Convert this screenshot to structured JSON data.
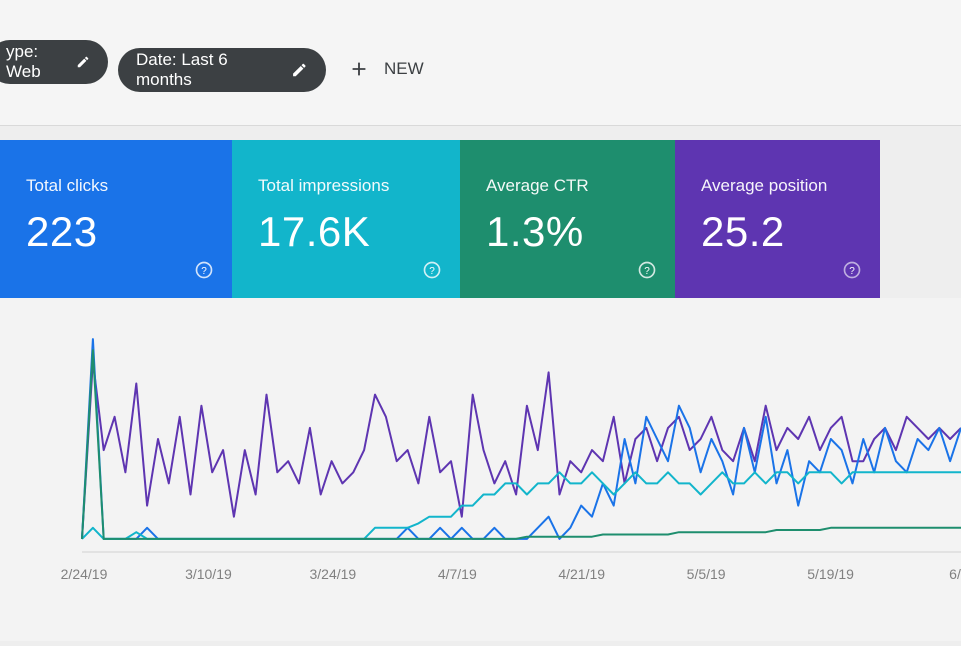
{
  "filters": {
    "type_chip": "ype: Web",
    "date_chip": "Date: Last 6 months",
    "new_label": "NEW"
  },
  "metrics": [
    {
      "label": "Total clicks",
      "value": "223",
      "color": "#1a73e8"
    },
    {
      "label": "Total impressions",
      "value": "17.6K",
      "color": "#12b5cb"
    },
    {
      "label": "Average CTR",
      "value": "1.3%",
      "color": "#1e8e6e"
    },
    {
      "label": "Average position",
      "value": "25.2",
      "color": "#5e35b1"
    }
  ],
  "icons": {
    "edit": "pencil-icon",
    "add": "plus-icon",
    "help": "question-circle-icon"
  },
  "chart_data": {
    "type": "line",
    "x_labels": [
      "2/24/19",
      "3/10/19",
      "3/24/19",
      "4/7/19",
      "4/21/19",
      "5/5/19",
      "5/19/19",
      "6/"
    ],
    "ylim": [
      0,
      100
    ],
    "series": [
      {
        "color": "#5e35b1",
        "values": [
          5,
          85,
          45,
          60,
          35,
          75,
          20,
          50,
          30,
          60,
          25,
          65,
          35,
          45,
          15,
          45,
          25,
          70,
          35,
          40,
          30,
          55,
          25,
          40,
          30,
          35,
          45,
          70,
          60,
          40,
          45,
          30,
          60,
          35,
          40,
          15,
          70,
          45,
          30,
          40,
          25,
          65,
          45,
          80,
          25,
          40,
          35,
          45,
          40,
          60,
          30,
          50,
          55,
          40,
          55,
          60,
          45,
          50,
          60,
          45,
          40,
          55,
          40,
          65,
          45,
          55,
          50,
          60,
          45,
          55,
          60,
          40,
          40,
          50,
          55,
          45,
          60,
          55,
          50,
          55,
          50,
          55
        ]
      },
      {
        "color": "#1a73e8",
        "values": [
          5,
          95,
          5,
          5,
          5,
          5,
          10,
          5,
          5,
          5,
          5,
          5,
          5,
          5,
          5,
          5,
          5,
          5,
          5,
          5,
          5,
          5,
          5,
          5,
          5,
          5,
          5,
          5,
          5,
          5,
          10,
          5,
          5,
          10,
          5,
          10,
          5,
          5,
          10,
          5,
          5,
          5,
          10,
          15,
          5,
          10,
          20,
          15,
          30,
          20,
          50,
          30,
          60,
          50,
          40,
          65,
          55,
          35,
          50,
          40,
          25,
          55,
          35,
          60,
          30,
          45,
          20,
          40,
          35,
          50,
          45,
          30,
          50,
          35,
          55,
          40,
          35,
          50,
          45,
          55,
          40,
          55
        ]
      },
      {
        "color": "#12b5cb",
        "values": [
          5,
          10,
          5,
          5,
          5,
          8,
          5,
          5,
          5,
          5,
          5,
          5,
          5,
          5,
          5,
          5,
          5,
          5,
          5,
          5,
          5,
          5,
          5,
          5,
          5,
          5,
          5,
          10,
          10,
          10,
          10,
          12,
          15,
          15,
          15,
          20,
          20,
          25,
          25,
          30,
          30,
          25,
          30,
          30,
          35,
          30,
          30,
          35,
          30,
          25,
          30,
          35,
          30,
          30,
          35,
          30,
          30,
          25,
          30,
          35,
          30,
          30,
          35,
          30,
          35,
          35,
          30,
          35,
          35,
          35,
          30,
          35,
          35,
          35,
          35,
          35,
          35,
          35,
          35,
          35,
          35,
          35
        ]
      },
      {
        "color": "#1e8e6e",
        "values": [
          5,
          90,
          5,
          5,
          5,
          5,
          5,
          5,
          5,
          5,
          5,
          5,
          5,
          5,
          5,
          5,
          5,
          5,
          5,
          5,
          5,
          5,
          5,
          5,
          5,
          5,
          5,
          5,
          5,
          5,
          5,
          5,
          5,
          5,
          5,
          5,
          5,
          5,
          5,
          5,
          5,
          6,
          6,
          6,
          6,
          6,
          6,
          6,
          7,
          7,
          7,
          7,
          7,
          7,
          7,
          8,
          8,
          8,
          8,
          8,
          8,
          8,
          8,
          8,
          9,
          9,
          9,
          9,
          9,
          10,
          10,
          10,
          10,
          10,
          10,
          10,
          10,
          10,
          10,
          10,
          10,
          10
        ]
      }
    ]
  }
}
